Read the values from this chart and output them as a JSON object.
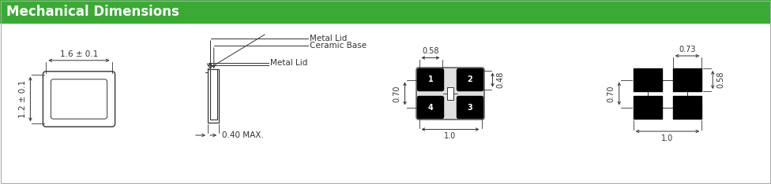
{
  "title": "Mechanical Dimensions",
  "title_bg": "#3aaa35",
  "title_text_color": "white",
  "title_fontsize": 12,
  "background_color": "white",
  "border_color": "#333333",
  "dim_labels": {
    "top_width": "1.6 ± 0.1",
    "left_height": "1.2 ± 0.1",
    "side_thickness": "0.40 MAX.",
    "metal_lid": "Metal Lid",
    "ceramic_base": "Ceramic Base",
    "pad_width_top": "0.58",
    "pad_height": "0.48",
    "pad_spacing_v": "0.70",
    "pad_bottom_width": "1.0",
    "land_width": "0.73",
    "land_height": "0.58",
    "land_spacing_v": "0.70",
    "land_bottom_width": "1.0"
  }
}
